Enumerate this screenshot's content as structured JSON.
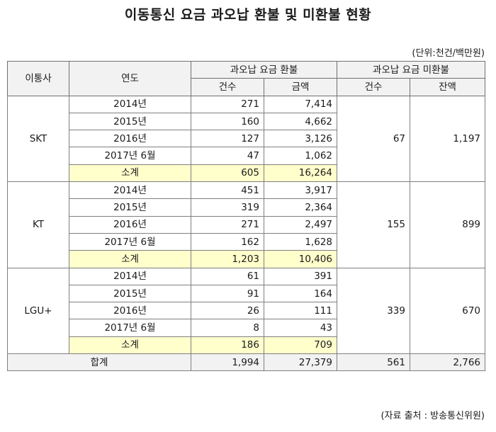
{
  "title": "이동통신 요금 과오납 환불 및 미환불 현황",
  "unit_note": "(단위:천건/백만원)",
  "source_note": "(자료 출처 : 방송통신위원)",
  "headers": {
    "carrier": "이통사",
    "year": "연도",
    "refund_group": "과오납 요금 환불",
    "unrefunded_group": "과오납 요금 미환불",
    "count": "건수",
    "amount": "금액",
    "count2": "건수",
    "balance": "잔액"
  },
  "carriers": [
    {
      "name": "SKT",
      "rows": [
        {
          "year": "2014년",
          "count": "271",
          "amount": "7,414"
        },
        {
          "year": "2015년",
          "count": "160",
          "amount": "4,662"
        },
        {
          "year": "2016년",
          "count": "127",
          "amount": "3,126"
        },
        {
          "year": "2017년 6월",
          "count": "47",
          "amount": "1,062"
        }
      ],
      "subtotal": {
        "label": "소계",
        "count": "605",
        "amount": "16,264"
      },
      "unrefunded_count": "67",
      "unrefunded_balance": "1,197"
    },
    {
      "name": "KT",
      "rows": [
        {
          "year": "2014년",
          "count": "451",
          "amount": "3,917"
        },
        {
          "year": "2015년",
          "count": "319",
          "amount": "2,364"
        },
        {
          "year": "2016년",
          "count": "271",
          "amount": "2,497"
        },
        {
          "year": "2017년 6월",
          "count": "162",
          "amount": "1,628"
        }
      ],
      "subtotal": {
        "label": "소계",
        "count": "1,203",
        "amount": "10,406"
      },
      "unrefunded_count": "155",
      "unrefunded_balance": "899"
    },
    {
      "name": "LGU+",
      "rows": [
        {
          "year": "2014년",
          "count": "61",
          "amount": "391"
        },
        {
          "year": "2015년",
          "count": "91",
          "amount": "164"
        },
        {
          "year": "2016년",
          "count": "26",
          "amount": "111"
        },
        {
          "year": "2017년 6월",
          "count": "8",
          "amount": "43"
        }
      ],
      "subtotal": {
        "label": "소계",
        "count": "186",
        "amount": "709"
      },
      "unrefunded_count": "339",
      "unrefunded_balance": "670"
    }
  ],
  "total": {
    "label": "합계",
    "count": "1,994",
    "amount": "27,379",
    "unrefunded_count": "561",
    "unrefunded_balance": "2,766"
  },
  "colors": {
    "header_bg": "#f2f2f2",
    "subtotal_bg": "#ffffcc",
    "border": "#7f7f7f"
  }
}
